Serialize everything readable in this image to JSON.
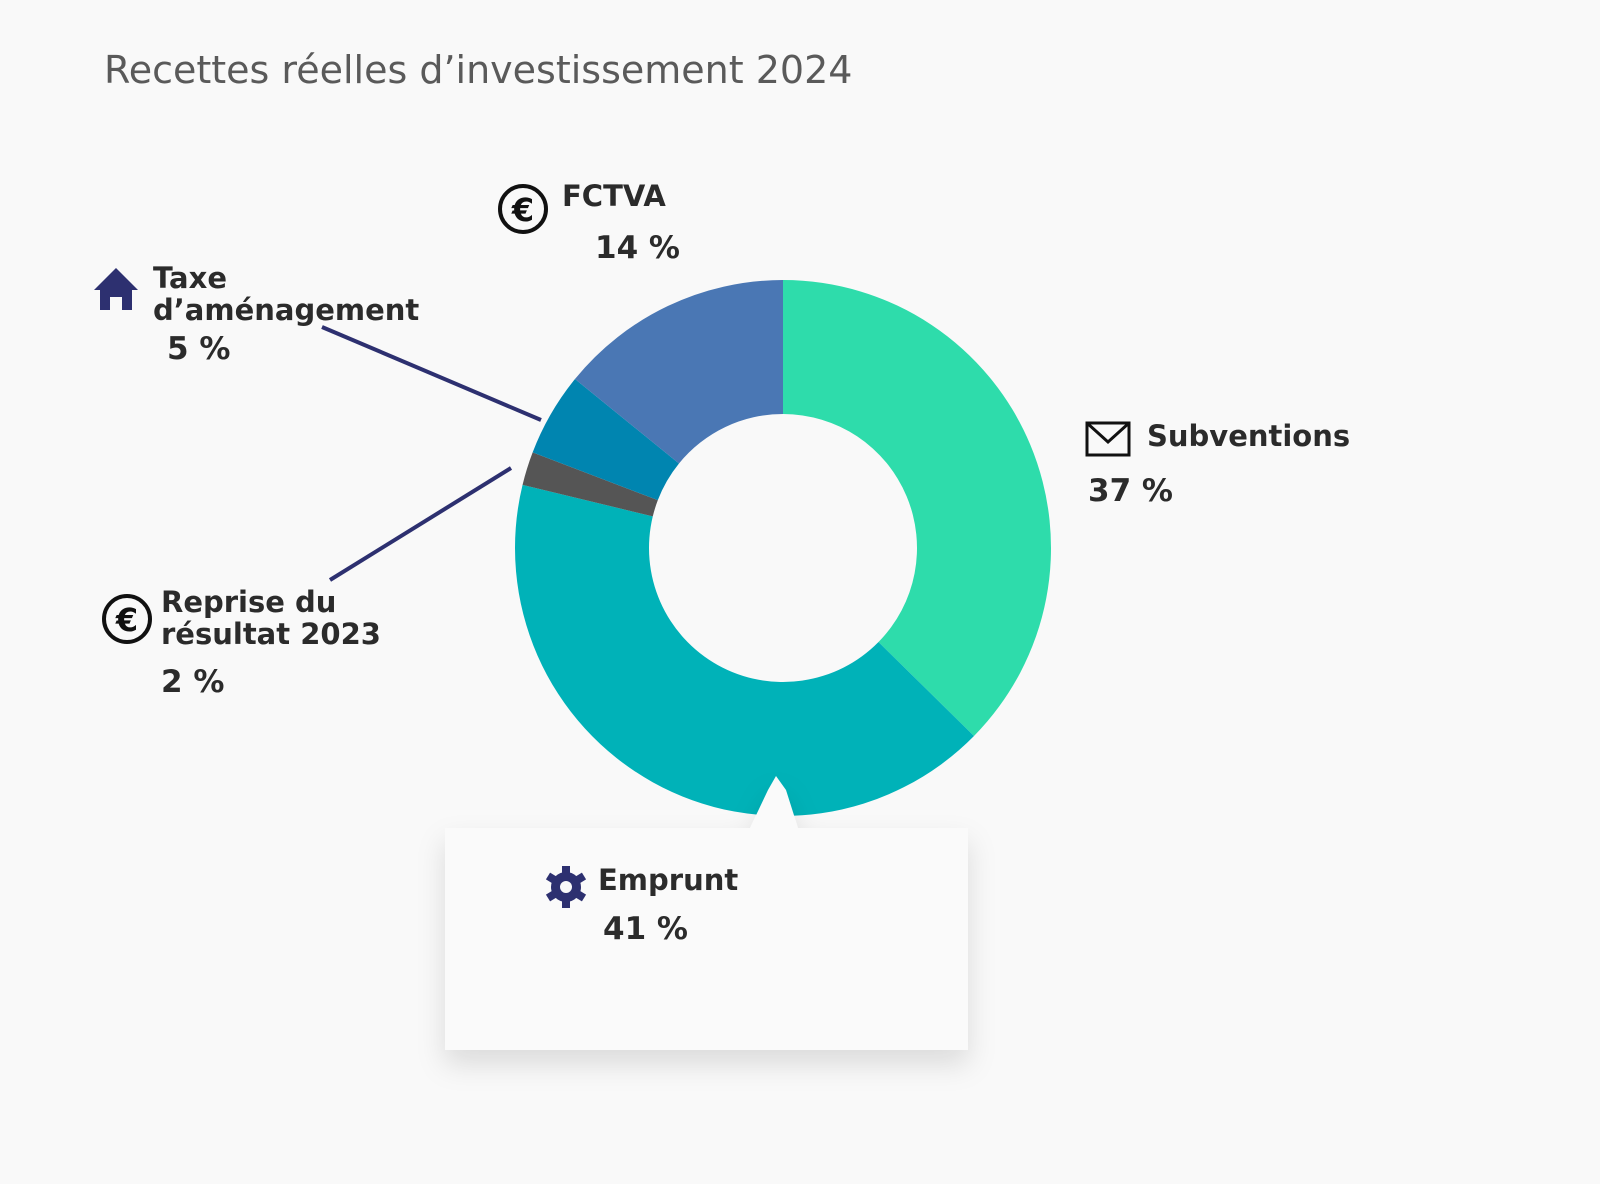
{
  "chart_data": {
    "type": "donut",
    "title": "Recettes réelles d’investissement 2024",
    "categories": [
      "Subventions",
      "Emprunt",
      "Reprise du résultat 2023",
      "Taxe d’aménagement",
      "FCTVA"
    ],
    "values": [
      37,
      41,
      2,
      5,
      14
    ],
    "value_labels": [
      "37 %",
      "41 %",
      "2 %",
      "5 %",
      "14 %"
    ],
    "colors": [
      "#2edcab",
      "#00b2b8",
      "#555555",
      "#0085b0",
      "#4a77b4"
    ]
  }
}
